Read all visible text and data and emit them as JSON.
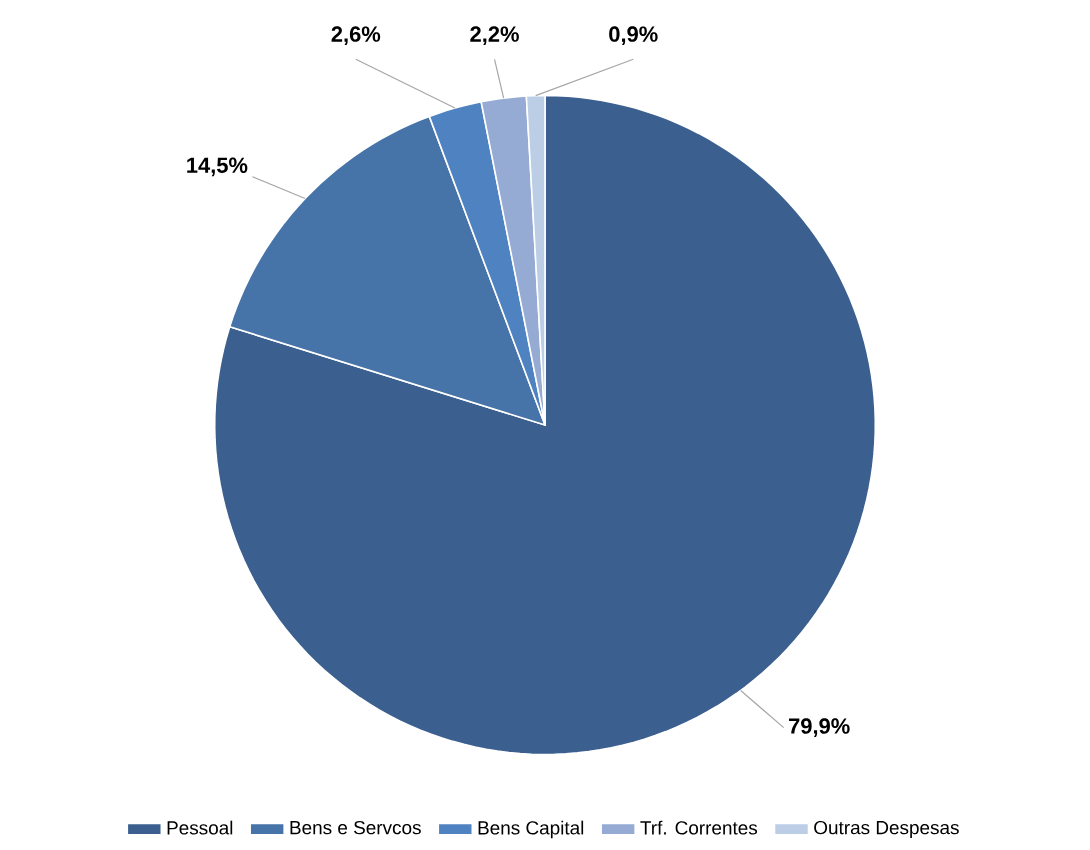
{
  "chart_data": {
    "type": "pie",
    "categories": [
      "Pessoal",
      "Bens e Servcos",
      "Bens Capital",
      "Trf. Correntes",
      "Outras Despesas"
    ],
    "values": [
      79.9,
      14.5,
      2.6,
      2.2,
      0.9
    ],
    "value_labels": [
      "79,9%",
      "14,5%",
      "2,6%",
      "2,2%",
      "0,9%"
    ],
    "colors": [
      "#3b5f8e",
      "#4673a8",
      "#4f82c0",
      "#95abd3",
      "#bccde6"
    ],
    "legend": "bottom"
  }
}
